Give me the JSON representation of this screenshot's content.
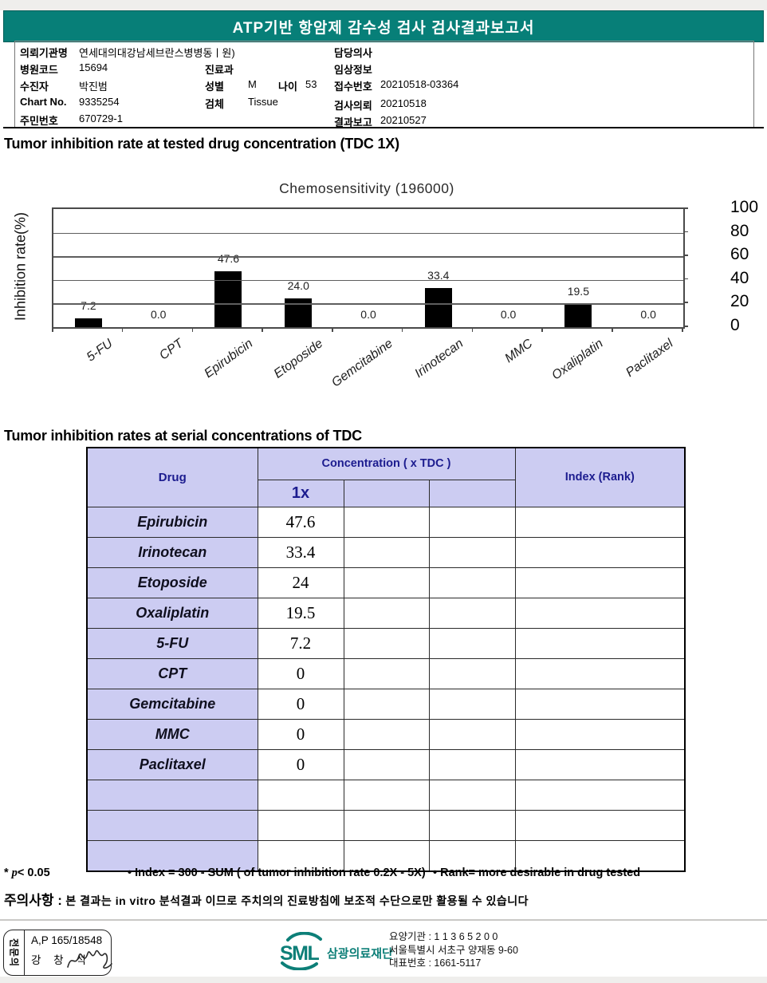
{
  "header": {
    "title": "ATP기반 항암제 감수성 검사 검사결과보고서"
  },
  "patient": {
    "left": [
      {
        "label": "의뢰기관명",
        "value": "연세대의대강남세브란스병병동ㅣ원)"
      },
      {
        "label": "병원코드",
        "value": "15694"
      },
      {
        "label": "수진자",
        "value": "박진범"
      },
      {
        "label": "Chart No.",
        "value": "9335254"
      },
      {
        "label": "주민번호",
        "value": "670729-1"
      }
    ],
    "mid": [
      {
        "label": "진료과",
        "value": ""
      },
      {
        "label": "성별",
        "value": "M"
      },
      {
        "label": "나이",
        "value": "53"
      },
      {
        "label": "검체",
        "value": "Tissue"
      }
    ],
    "right": [
      {
        "label": "담당의사",
        "value": ""
      },
      {
        "label": "임상정보",
        "value": ""
      },
      {
        "label": "접수번호",
        "value": "20210518-03364"
      },
      {
        "label": "검사의뢰",
        "value": "20210518"
      },
      {
        "label": "결과보고",
        "value": "20210527"
      }
    ]
  },
  "section1": {
    "title": "Tumor inhibition rate at tested drug concentration (TDC 1X)"
  },
  "chart_data": {
    "type": "bar",
    "title": "Chemosensitivity (196000)",
    "ylabel": "Inhibition rate(%)",
    "categories": [
      "5-FU",
      "CPT",
      "Epirubicin",
      "Etoposide",
      "Gemcitabine",
      "Irinotecan",
      "MMC",
      "Oxaliplatin",
      "Paclitaxel"
    ],
    "values": [
      7.2,
      0.0,
      47.6,
      24.0,
      0.0,
      33.4,
      0.0,
      19.5,
      0.0
    ],
    "labels": [
      "7.2",
      "0.0",
      "47.6",
      "24.0",
      "0.0",
      "33.4",
      "0.0",
      "19.5",
      "0.0"
    ],
    "ylim": [
      0,
      100
    ],
    "yticks": [
      0,
      20,
      40,
      60,
      80,
      100
    ],
    "grid": true,
    "legend": "none",
    "bar_color": "#000000"
  },
  "section2": {
    "title": "Tumor inhibition rates at serial concentrations of TDC"
  },
  "table": {
    "col_drug": "Drug",
    "col_concentration": "Concentration ( x TDC )",
    "col_1x": "1x",
    "col_index": "Index (Rank)",
    "rows": [
      {
        "drug": "Epirubicin",
        "v1x": "47.6"
      },
      {
        "drug": "Irinotecan",
        "v1x": "33.4"
      },
      {
        "drug": "Etoposide",
        "v1x": "24"
      },
      {
        "drug": "Oxaliplatin",
        "v1x": "19.5"
      },
      {
        "drug": "5-FU",
        "v1x": "7.2"
      },
      {
        "drug": "CPT",
        "v1x": "0"
      },
      {
        "drug": "Gemcitabine",
        "v1x": "0"
      },
      {
        "drug": "MMC",
        "v1x": "0"
      },
      {
        "drug": "Paclitaxel",
        "v1x": "0"
      },
      {
        "drug": "",
        "v1x": ""
      },
      {
        "drug": "",
        "v1x": ""
      },
      {
        "drug": "",
        "v1x": ""
      }
    ]
  },
  "footnotes": {
    "p_star": "* ",
    "p_italic": "p",
    "p_rest": "< 0.05",
    "index_note": "• Index = 300 - SUM ( of tumor inhibition rate 0.2X  -  5X)",
    "rank_note": "• Rank= more desirable in drug tested",
    "caution_label": "주의사항 :",
    "caution_text": "본 결과는 in vitro 분석결과 이므로 주치의의 진료방침에 보조적 수단으로만 활용될 수 있습니다"
  },
  "footer": {
    "stamp": {
      "vertical_label": "전문의",
      "line1": "A,P 165/18548",
      "line2": "강 창 석"
    },
    "logo": {
      "text": "SML",
      "org": "삼광의료재단"
    },
    "info_lines": [
      "요양기관 : 1 1 3 6 5 2 0 0",
      "서울특별시 서초구 양재동 9-60",
      "대표번호 : 1661-5117"
    ]
  },
  "colors": {
    "banner_teal": "#077f78",
    "table_header_bg": "#ccccf2",
    "table_header_text": "#1c1c8f",
    "logo_teal": "#0d7f78",
    "bar_black": "#000000"
  }
}
